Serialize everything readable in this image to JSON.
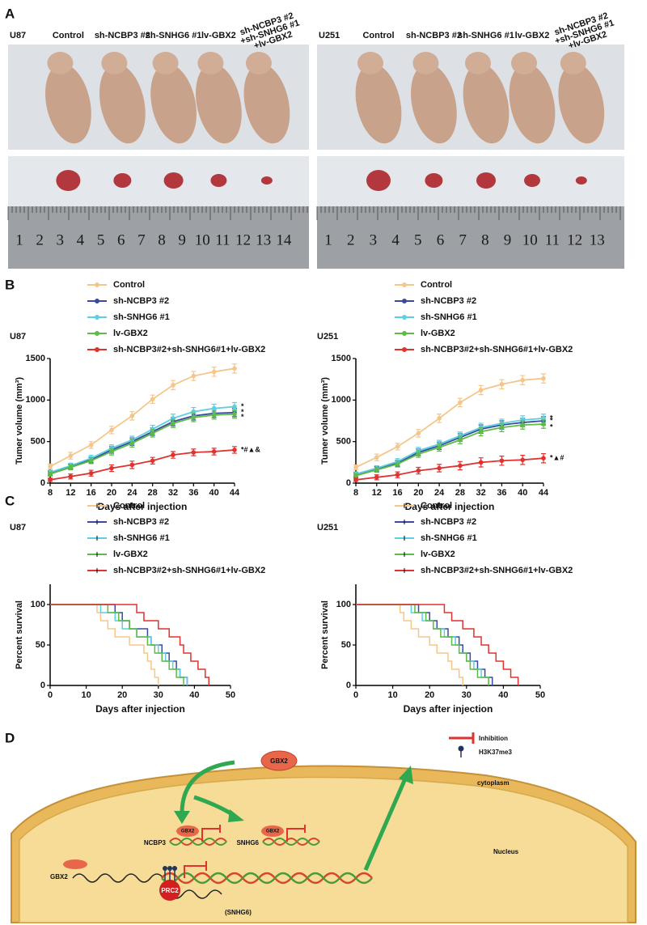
{
  "panel_labels": [
    "A",
    "B",
    "C",
    "D"
  ],
  "panel_a": {
    "groups": [
      {
        "cell": "U87",
        "columns": [
          "Control",
          "sh-NCBP3 #2",
          "sh-SNHG6 #1",
          "lv-GBX2"
        ],
        "combo": [
          "sh-NCBP3 #2",
          "+sh-SNHG6 #1",
          "+lv-GBX2"
        ],
        "ruler": [
          "1",
          "2",
          "3",
          "4",
          "5",
          "6",
          "7",
          "8",
          "9",
          "10",
          "11",
          "12",
          "13",
          "14"
        ]
      },
      {
        "cell": "U251",
        "columns": [
          "Control",
          "sh-NCBP3 #2",
          "sh-SNHG6 #1",
          "lv-GBX2"
        ],
        "combo": [
          "sh-NCBP3 #2",
          "+sh-SNHG6 #1",
          "+lv-GBX2"
        ],
        "ruler": [
          "1",
          "2",
          "3",
          "4",
          "5",
          "6",
          "7",
          "8",
          "9",
          "10",
          "11",
          "12",
          "13"
        ]
      }
    ]
  },
  "chart_data": [
    {
      "type": "line",
      "title": "U87",
      "xlabel": "Days after injection",
      "ylabel": "Tumer volume (mm³)",
      "x": [
        8,
        12,
        16,
        20,
        24,
        28,
        32,
        36,
        40,
        44
      ],
      "xlim": [
        8,
        44
      ],
      "xticks": [
        8,
        12,
        16,
        20,
        24,
        28,
        32,
        36,
        40,
        44
      ],
      "ylim": [
        0,
        1500
      ],
      "yticks": [
        0,
        500,
        1000,
        1500
      ],
      "series": [
        {
          "name": "Control",
          "color": "#f5c68a",
          "values": [
            200,
            330,
            460,
            640,
            810,
            1010,
            1180,
            1290,
            1340,
            1380
          ],
          "errors": [
            30,
            40,
            40,
            45,
            50,
            50,
            55,
            55,
            55,
            55
          ]
        },
        {
          "name": "sh-NCBP3 #2",
          "color": "#3b4aa0",
          "values": [
            120,
            200,
            280,
            400,
            500,
            620,
            740,
            810,
            840,
            850
          ],
          "errors": [
            25,
            30,
            35,
            40,
            45,
            45,
            50,
            50,
            50,
            50
          ],
          "annotation": "*"
        },
        {
          "name": "sh-SNHG6 #1",
          "color": "#5ccfe0",
          "values": [
            130,
            210,
            300,
            420,
            520,
            650,
            780,
            860,
            900,
            920
          ],
          "errors": [
            25,
            30,
            35,
            40,
            45,
            45,
            50,
            50,
            50,
            50
          ],
          "annotation": "*"
        },
        {
          "name": "lv-GBX2",
          "color": "#5dbb46",
          "values": [
            110,
            190,
            270,
            380,
            480,
            600,
            720,
            790,
            820,
            830
          ],
          "errors": [
            25,
            30,
            35,
            40,
            45,
            45,
            50,
            50,
            50,
            50
          ],
          "annotation": "*"
        },
        {
          "name": "sh-NCBP3#2+sh-SNHG6#1+lv-GBX2",
          "color": "#e0322e",
          "values": [
            40,
            80,
            120,
            180,
            220,
            270,
            340,
            370,
            380,
            400
          ],
          "errors": [
            20,
            30,
            35,
            40,
            45,
            40,
            40,
            40,
            40,
            40
          ],
          "annotation": "*#▲&"
        }
      ]
    },
    {
      "type": "line",
      "title": "U251",
      "xlabel": "Days after injection",
      "ylabel": "Tumer volume (mm³)",
      "x": [
        8,
        12,
        16,
        20,
        24,
        28,
        32,
        36,
        40,
        44
      ],
      "xlim": [
        8,
        44
      ],
      "xticks": [
        8,
        12,
        16,
        20,
        24,
        28,
        32,
        36,
        40,
        44
      ],
      "ylim": [
        0,
        1500
      ],
      "yticks": [
        0,
        500,
        1000,
        1500
      ],
      "series": [
        {
          "name": "Control",
          "color": "#f5c68a",
          "values": [
            190,
            310,
            440,
            600,
            780,
            970,
            1120,
            1190,
            1240,
            1260
          ],
          "errors": [
            30,
            40,
            40,
            45,
            50,
            50,
            55,
            55,
            55,
            55
          ]
        },
        {
          "name": "sh-NCBP3 #2",
          "color": "#3b4aa0",
          "values": [
            100,
            170,
            240,
            370,
            450,
            550,
            650,
            700,
            730,
            750
          ],
          "errors": [
            25,
            30,
            35,
            40,
            45,
            45,
            50,
            50,
            50,
            50
          ],
          "annotation": "*"
        },
        {
          "name": "sh-SNHG6 #1",
          "color": "#5ccfe0",
          "values": [
            110,
            180,
            260,
            390,
            470,
            570,
            670,
            720,
            760,
            780
          ],
          "errors": [
            25,
            30,
            35,
            40,
            45,
            45,
            50,
            50,
            50,
            50
          ],
          "annotation": "*"
        },
        {
          "name": "lv-GBX2",
          "color": "#5dbb46",
          "values": [
            90,
            160,
            230,
            350,
            430,
            520,
            620,
            670,
            700,
            710
          ],
          "errors": [
            25,
            30,
            35,
            40,
            45,
            45,
            50,
            50,
            50,
            50
          ],
          "annotation": "*"
        },
        {
          "name": "sh-NCBP3#2+sh-SNHG6#1+lv-GBX2",
          "color": "#e0322e",
          "values": [
            40,
            70,
            100,
            150,
            180,
            210,
            250,
            270,
            280,
            300
          ],
          "errors": [
            20,
            30,
            35,
            40,
            45,
            50,
            55,
            55,
            55,
            55
          ],
          "annotation": "*▲#"
        }
      ]
    },
    {
      "type": "step",
      "title": "U87",
      "xlabel": "Days after injection",
      "ylabel": "Percent survival",
      "xlim": [
        0,
        50
      ],
      "xticks": [
        0,
        10,
        20,
        30,
        40,
        50
      ],
      "ylim": [
        0,
        125
      ],
      "yticks": [
        0,
        50,
        100
      ],
      "series": [
        {
          "name": "Control",
          "color": "#f5c68a",
          "x": [
            0,
            13,
            14,
            16,
            18,
            22,
            26,
            27,
            28,
            29,
            30
          ],
          "values": [
            100,
            90,
            80,
            70,
            60,
            50,
            40,
            30,
            20,
            10,
            0
          ]
        },
        {
          "name": "sh-NCBP3 #2",
          "color": "#3b4aa0",
          "x": [
            0,
            18,
            20,
            22,
            27,
            28,
            31,
            33,
            35,
            36,
            38
          ],
          "values": [
            100,
            90,
            80,
            70,
            60,
            50,
            40,
            30,
            20,
            10,
            0
          ]
        },
        {
          "name": "sh-SNHG6 #1",
          "color": "#5ccfe0",
          "x": [
            0,
            14,
            18,
            20,
            24,
            28,
            30,
            32,
            34,
            36,
            38
          ],
          "values": [
            100,
            90,
            80,
            70,
            60,
            50,
            40,
            30,
            20,
            10,
            0
          ]
        },
        {
          "name": "lv-GBX2",
          "color": "#5dbb46",
          "x": [
            0,
            16,
            19,
            22,
            24,
            27,
            29,
            31,
            33,
            35,
            37
          ],
          "values": [
            100,
            90,
            80,
            70,
            60,
            50,
            40,
            30,
            20,
            10,
            0
          ]
        },
        {
          "name": "sh-NCBP3#2+sh-SNHG6#1+lv-GBX2",
          "color": "#e0322e",
          "x": [
            0,
            24,
            26,
            30,
            33,
            36,
            37,
            39,
            41,
            43,
            44
          ],
          "values": [
            100,
            90,
            80,
            70,
            60,
            50,
            40,
            30,
            20,
            10,
            0
          ]
        }
      ]
    },
    {
      "type": "step",
      "title": "U251",
      "xlabel": "Days after injection",
      "ylabel": "Percent survival",
      "xlim": [
        0,
        50
      ],
      "xticks": [
        0,
        10,
        20,
        30,
        40,
        50
      ],
      "ylim": [
        0,
        125
      ],
      "yticks": [
        0,
        50,
        100
      ],
      "series": [
        {
          "name": "Control",
          "color": "#f5c68a",
          "x": [
            0,
            12,
            13,
            15,
            17,
            20,
            22,
            25,
            26,
            28,
            29
          ],
          "values": [
            100,
            90,
            80,
            70,
            60,
            50,
            40,
            30,
            20,
            10,
            0
          ]
        },
        {
          "name": "sh-NCBP3 #2",
          "color": "#3b4aa0",
          "x": [
            0,
            17,
            20,
            22,
            25,
            28,
            29,
            31,
            33,
            35,
            37
          ],
          "values": [
            100,
            90,
            80,
            70,
            60,
            50,
            40,
            30,
            20,
            10,
            0
          ]
        },
        {
          "name": "sh-SNHG6 #1",
          "color": "#5ccfe0",
          "x": [
            0,
            15,
            18,
            21,
            24,
            27,
            28,
            30,
            32,
            34,
            36
          ],
          "values": [
            100,
            90,
            80,
            70,
            60,
            50,
            40,
            30,
            20,
            10,
            0
          ]
        },
        {
          "name": "lv-GBX2",
          "color": "#5dbb46",
          "x": [
            0,
            16,
            19,
            21,
            23,
            26,
            28,
            30,
            31,
            33,
            36
          ],
          "values": [
            100,
            90,
            80,
            70,
            60,
            50,
            40,
            30,
            20,
            10,
            0
          ]
        },
        {
          "name": "sh-NCBP3#2+sh-SNHG6#1+lv-GBX2",
          "color": "#e0322e",
          "x": [
            0,
            24,
            26,
            29,
            32,
            34,
            36,
            38,
            40,
            42,
            44
          ],
          "values": [
            100,
            90,
            80,
            70,
            60,
            50,
            40,
            30,
            20,
            10,
            0
          ]
        }
      ]
    }
  ],
  "panel_d": {
    "legend": {
      "inhibition": "Inhibition",
      "mark": "H3K37me3"
    },
    "free_factor": "GBX2",
    "cytoplasm": "cytoplasm",
    "nucleus": "Nucleus",
    "genes": [
      {
        "name": "NCBP3",
        "factor": "GBX2"
      },
      {
        "name": "SNHG6",
        "factor": "GBX2"
      }
    ],
    "gbx2_gene": "GBX2",
    "prc2": "PRC2",
    "snhg6_locus": "(SNHG6)"
  }
}
